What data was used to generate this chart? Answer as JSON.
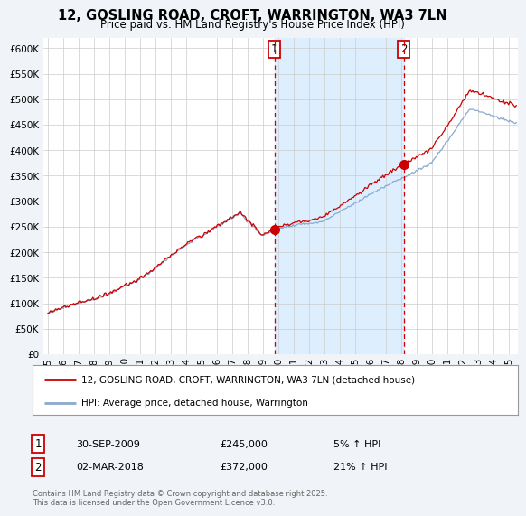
{
  "title_line1": "12, GOSLING ROAD, CROFT, WARRINGTON, WA3 7LN",
  "title_line2": "Price paid vs. HM Land Registry's House Price Index (HPI)",
  "bg_color": "#f0f4f8",
  "plot_bg": "#ffffff",
  "shade_color": "#ddeeff",
  "red_color": "#cc0000",
  "blue_color": "#88aacc",
  "vline_color": "#cc0000",
  "yticks": [
    0,
    50000,
    100000,
    150000,
    200000,
    250000,
    300000,
    350000,
    400000,
    450000,
    500000,
    550000,
    600000
  ],
  "sale1_year": 2009.75,
  "sale2_year": 2018.17,
  "sale1_price": 245000,
  "sale2_price": 372000,
  "annotation1": {
    "label": "1",
    "date": "30-SEP-2009",
    "price": "£245,000",
    "hpi": "5% ↑ HPI"
  },
  "annotation2": {
    "label": "2",
    "date": "02-MAR-2018",
    "price": "£372,000",
    "hpi": "21% ↑ HPI"
  },
  "legend_label1": "12, GOSLING ROAD, CROFT, WARRINGTON, WA3 7LN (detached house)",
  "legend_label2": "HPI: Average price, detached house, Warrington",
  "footer": "Contains HM Land Registry data © Crown copyright and database right 2025.\nThis data is licensed under the Open Government Licence v3.0."
}
